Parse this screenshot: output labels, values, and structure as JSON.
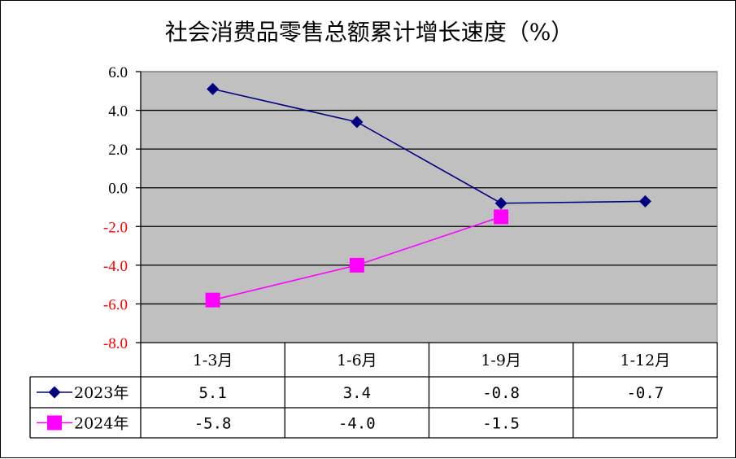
{
  "chart_data": {
    "type": "line",
    "title": "社会消费品零售总额累计增长速度（%）",
    "categories": [
      "1-3月",
      "1-6月",
      "1-9月",
      "1-12月"
    ],
    "ylim": [
      -8.0,
      6.0
    ],
    "y_ticks": [
      "6.0",
      "4.0",
      "2.0",
      "0.0",
      "-2.0",
      "-4.0",
      "-6.0",
      "-8.0"
    ],
    "y_tick_values": [
      6,
      4,
      2,
      0,
      -2,
      -4,
      -6,
      -8
    ],
    "grid": true,
    "legend_placement": "data-table-left",
    "series": [
      {
        "name": "2023年",
        "values": [
          5.1,
          3.4,
          -0.8,
          -0.7
        ],
        "labels": [
          "5.1",
          "3.4",
          "-0.8",
          "-0.7"
        ],
        "color": "#000080",
        "marker": "diamond"
      },
      {
        "name": "2024年",
        "values": [
          -5.8,
          -4.0,
          -1.5,
          null
        ],
        "labels": [
          "-5.8",
          "-4.0",
          "-1.5",
          ""
        ],
        "color": "#ff00ff",
        "marker": "square"
      }
    ],
    "colors": {
      "plot_background": "#c0c0c0",
      "positive_tick": "#000000",
      "negative_tick": "#ff0000"
    }
  }
}
